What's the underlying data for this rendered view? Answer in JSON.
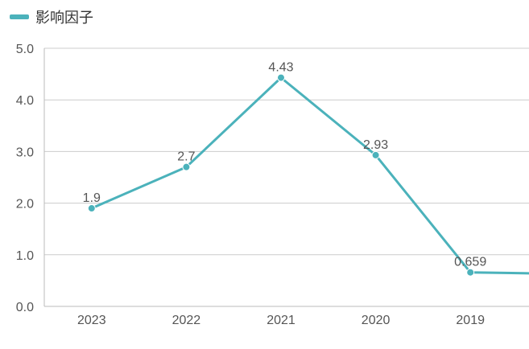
{
  "chart_data": {
    "type": "line",
    "legend": {
      "label": "影响因子",
      "position": "top-left"
    },
    "categories": [
      "2023",
      "2022",
      "2021",
      "2020",
      "2019"
    ],
    "series": [
      {
        "name": "影响因子",
        "values": [
          1.9,
          2.7,
          4.43,
          2.93,
          0.659
        ],
        "labels": [
          "1.9",
          "2.7",
          "4.43",
          "2.93",
          "0.659"
        ],
        "color": "#4bb2bb"
      }
    ],
    "y_ticks": [
      "0.0",
      "1.0",
      "2.0",
      "3.0",
      "4.0",
      "5.0"
    ],
    "ylim": [
      0,
      5
    ],
    "grid": true,
    "continuation_value": 0.64
  }
}
